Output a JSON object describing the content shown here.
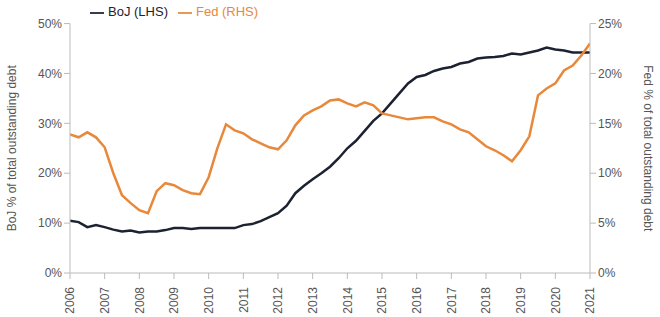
{
  "chart_data": {
    "type": "line",
    "x": [
      2006,
      2006.25,
      2006.5,
      2006.75,
      2007,
      2007.25,
      2007.5,
      2007.75,
      2008,
      2008.25,
      2008.5,
      2008.75,
      2009,
      2009.25,
      2009.5,
      2009.75,
      2010,
      2010.25,
      2010.5,
      2010.75,
      2011,
      2011.25,
      2011.5,
      2011.75,
      2012,
      2012.25,
      2012.5,
      2012.75,
      2013,
      2013.25,
      2013.5,
      2013.75,
      2014,
      2014.25,
      2014.5,
      2014.75,
      2015,
      2015.25,
      2015.5,
      2015.75,
      2016,
      2016.25,
      2016.5,
      2016.75,
      2017,
      2017.25,
      2017.5,
      2017.75,
      2018,
      2018.25,
      2018.5,
      2018.75,
      2019,
      2019.25,
      2019.5,
      2019.75,
      2020,
      2020.25,
      2020.5,
      2020.75,
      2021
    ],
    "series": [
      {
        "name": "BoJ (LHS)",
        "color": "#1c2231",
        "values": [
          10.5,
          10.2,
          9.2,
          9.6,
          9.2,
          8.7,
          8.3,
          8.5,
          8.1,
          8.3,
          8.3,
          8.6,
          9.0,
          9.0,
          8.8,
          9.0,
          9.0,
          9.0,
          9.0,
          9.0,
          9.6,
          9.8,
          10.4,
          11.2,
          12.0,
          13.5,
          16.0,
          17.5,
          18.8,
          20.0,
          21.3,
          23.0,
          25.0,
          26.5,
          28.5,
          30.5,
          32.0,
          34.0,
          36.0,
          38.0,
          39.3,
          39.7,
          40.5,
          41.0,
          41.3,
          42.0,
          42.3,
          43.0,
          43.2,
          43.3,
          43.5,
          44.0,
          43.8,
          44.2,
          44.6,
          45.2,
          44.8,
          44.6,
          44.2,
          44.2,
          44.2
        ]
      },
      {
        "name": "Fed (RHS)",
        "color": "#e8883a",
        "axis": "y2",
        "values": [
          13.9,
          13.6,
          14.1,
          13.6,
          12.6,
          10.0,
          7.8,
          7.0,
          6.3,
          6.0,
          8.2,
          9.0,
          8.8,
          8.3,
          8.0,
          7.9,
          9.6,
          12.5,
          14.9,
          14.3,
          14.0,
          13.4,
          13.0,
          12.6,
          12.4,
          13.3,
          14.8,
          15.8,
          16.3,
          16.7,
          17.3,
          17.4,
          17.0,
          16.7,
          17.1,
          16.8,
          16.0,
          15.8,
          15.6,
          15.4,
          15.5,
          15.6,
          15.6,
          15.2,
          14.9,
          14.4,
          14.1,
          13.4,
          12.7,
          12.3,
          11.8,
          11.2,
          12.3,
          13.7,
          17.8,
          18.5,
          19.0,
          20.3,
          20.8,
          21.8,
          23.0
        ]
      }
    ],
    "xlim": [
      2006,
      2021
    ],
    "xticks": [
      2006,
      2007,
      2008,
      2009,
      2010,
      2011,
      2012,
      2013,
      2014,
      2015,
      2016,
      2017,
      2018,
      2019,
      2020,
      2021
    ],
    "ylabel": "BoJ % of total outstanding debt",
    "ylim": [
      0,
      50
    ],
    "yticks": [
      {
        "value": 0,
        "label": "0%"
      },
      {
        "value": 10,
        "label": "10%"
      },
      {
        "value": 20,
        "label": "20%"
      },
      {
        "value": 30,
        "label": "30%"
      },
      {
        "value": 40,
        "label": "40%"
      },
      {
        "value": 50,
        "label": "50%"
      }
    ],
    "y2label": "Fed % of total outstanding debt",
    "y2lim": [
      0,
      25
    ],
    "y2ticks": [
      {
        "value": 0,
        "label": "0%"
      },
      {
        "value": 5,
        "label": "5%"
      },
      {
        "value": 10,
        "label": "10%"
      },
      {
        "value": 15,
        "label": "15%"
      },
      {
        "value": 20,
        "label": "20%"
      },
      {
        "value": 25,
        "label": "25%"
      }
    ],
    "legend": "upper left"
  }
}
